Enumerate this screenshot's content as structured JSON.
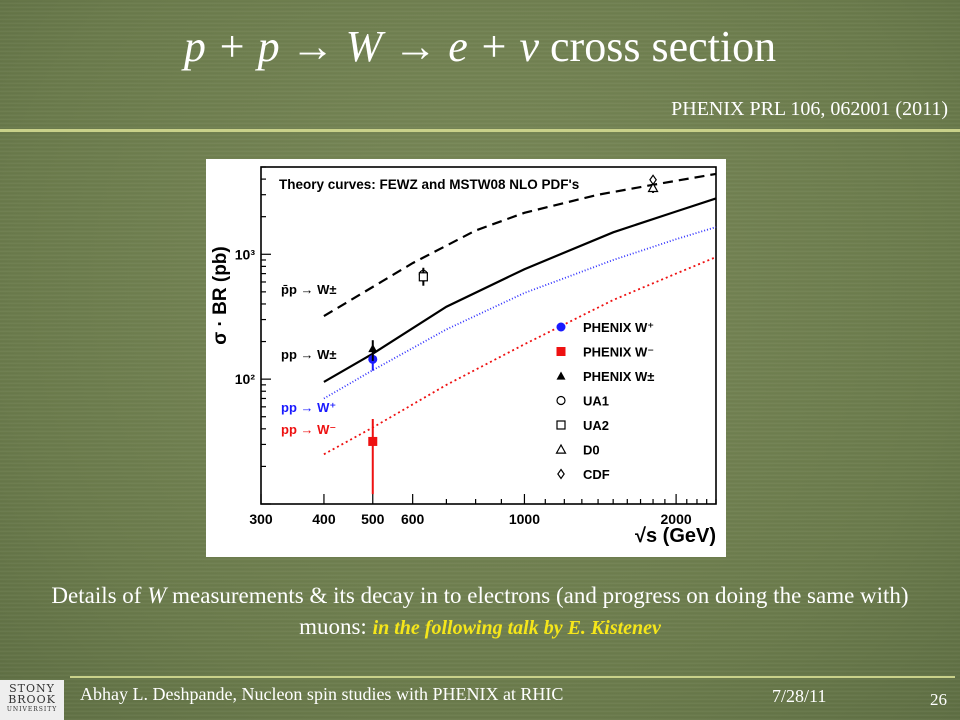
{
  "slide": {
    "title_part1": "p + p",
    "title_arrow1": " → ",
    "title_part2": "W",
    "title_arrow2": " → ",
    "title_part3": "e + ν",
    "title_part4": " cross section",
    "citation": "PHENIX PRL 106, 062001 (2011)",
    "caption_part1": "Details of ",
    "caption_W": "W",
    "caption_part2": " measurements & its decay in to electrons (and progress on doing the same  with) muons: ",
    "caption_highlight": "in the following talk by E. Kistenev"
  },
  "footer": {
    "author": "Abhay L. Deshpande, Nucleon spin studies with PHENIX at RHIC",
    "date": "7/28/11",
    "page": "26",
    "logo_line1": "STONY",
    "logo_line2": "BROOK",
    "logo_line3": "UNIVERSITY"
  },
  "chart_data": {
    "type": "line",
    "title": "Theory curves: FEWZ and MSTW08 NLO PDF's",
    "xlabel": "√s (GeV)",
    "ylabel": "σ · BR (pb)",
    "xscale": "log",
    "yscale": "log",
    "xlim": [
      300,
      2400
    ],
    "ylim": [
      10,
      5000
    ],
    "xticks": [
      "300",
      "400",
      "500",
      "600",
      "1000",
      "2000"
    ],
    "yticks": [
      "10²",
      "10³"
    ],
    "curve_labels": [
      {
        "text": "p̄p → W±",
        "color": "#000000"
      },
      {
        "text": "pp → W±",
        "color": "#000000"
      },
      {
        "text": "pp → W⁺",
        "color": "#1a1aff"
      },
      {
        "text": "pp → W⁻",
        "color": "#ee1111"
      }
    ],
    "series": [
      {
        "x": [
          400,
          600,
          800,
          1000,
          1400,
          1800,
          2400
        ],
        "y": [
          320,
          850,
          1550,
          2150,
          3000,
          3600,
          4400
        ],
        "color": "#000000",
        "dash": "10,6"
      },
      {
        "x": [
          400,
          500,
          700,
          1000,
          1500,
          2000,
          2400
        ],
        "y": [
          95,
          160,
          380,
          760,
          1500,
          2200,
          2800
        ],
        "color": "#000000",
        "dash": ""
      },
      {
        "x": [
          400,
          500,
          700,
          1000,
          1500,
          2000,
          2400
        ],
        "y": [
          70,
          118,
          250,
          490,
          900,
          1320,
          1650
        ],
        "color": "#3333ff",
        "dash": "1,2"
      },
      {
        "x": [
          400,
          500,
          700,
          1000,
          1500,
          2000,
          2400
        ],
        "y": [
          25,
          41,
          90,
          190,
          430,
          700,
          950
        ],
        "color": "#ee1111",
        "dash": "2,3"
      }
    ],
    "legend": [
      {
        "label": "PHENIX W⁺",
        "marker": "circle-filled",
        "color": "#1a1aff"
      },
      {
        "label": "PHENIX W⁻",
        "marker": "square-filled",
        "color": "#ee1111"
      },
      {
        "label": "PHENIX W±",
        "marker": "triangle-filled",
        "color": "#000000"
      },
      {
        "label": "UA1",
        "marker": "circle-open",
        "color": "#000000"
      },
      {
        "label": "UA2",
        "marker": "square-open",
        "color": "#000000"
      },
      {
        "label": "D0",
        "marker": "triangle-open",
        "color": "#000000"
      },
      {
        "label": "CDF",
        "marker": "diamond-open",
        "color": "#000000"
      }
    ],
    "points": [
      {
        "name": "PHENIX W⁺",
        "x": 500,
        "y": 144,
        "err_lo": 117,
        "err_hi": 162,
        "marker": "circle-filled",
        "color": "#1a1aff"
      },
      {
        "name": "PHENIX W⁻",
        "x": 500,
        "y": 31.7,
        "err_lo": 12,
        "err_hi": 48,
        "marker": "square-filled",
        "color": "#ee1111"
      },
      {
        "name": "PHENIX W±",
        "x": 500,
        "y": 176,
        "err_lo": 140,
        "err_hi": 205,
        "marker": "triangle-filled",
        "color": "#000000"
      },
      {
        "name": "UA1",
        "x": 630,
        "y": 690,
        "err_lo": 600,
        "err_hi": 780,
        "marker": "circle-open",
        "color": "#000000"
      },
      {
        "name": "UA2",
        "x": 630,
        "y": 660,
        "err_lo": 560,
        "err_hi": 760,
        "marker": "square-open",
        "color": "#000000"
      },
      {
        "name": "D0",
        "x": 1800,
        "y": 3400,
        "err_lo": 3100,
        "err_hi": 3700,
        "marker": "triangle-open",
        "color": "#000000"
      },
      {
        "name": "CDF",
        "x": 1800,
        "y": 3950,
        "err_lo": 3700,
        "err_hi": 4200,
        "marker": "diamond-open",
        "color": "#000000"
      }
    ]
  }
}
